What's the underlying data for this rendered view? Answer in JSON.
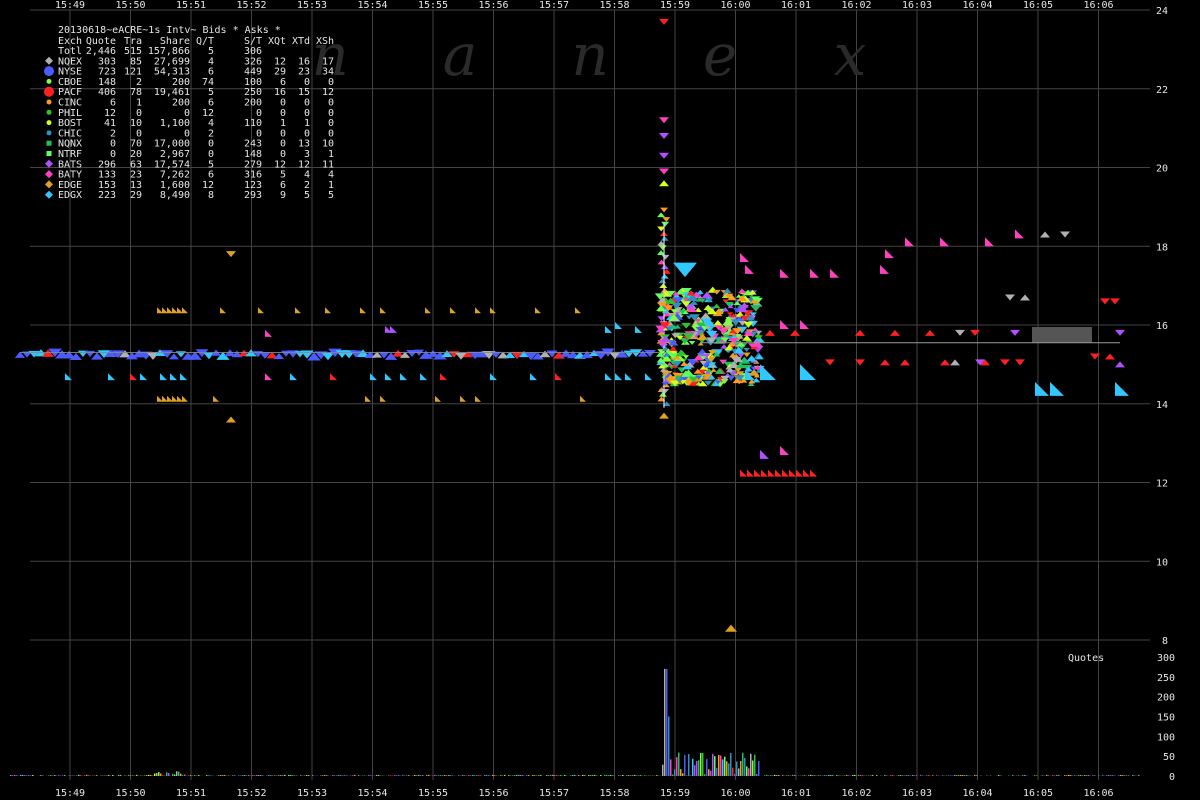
{
  "chart_data": {
    "type": "scatter",
    "title": "20130618~eACRE~1s Intv~ Bids * Asks *",
    "watermark": "nanex",
    "x_axis": {
      "tick_labels": [
        "15:49",
        "15:50",
        "15:51",
        "15:52",
        "15:53",
        "15:54",
        "15:55",
        "15:56",
        "15:57",
        "15:58",
        "15:59",
        "16:00",
        "16:01",
        "16:02",
        "16:03",
        "16:04",
        "16:05",
        "16:06"
      ],
      "xlim": [
        "15:48:40",
        "16:06:50"
      ]
    },
    "y_axis": {
      "ticks": [
        8,
        10,
        12,
        14,
        16,
        18,
        20,
        22,
        24
      ],
      "ylim": [
        8,
        24
      ]
    },
    "volume_axis": {
      "label": "Quotes",
      "ticks": [
        0,
        50,
        100,
        150,
        200,
        250,
        300
      ],
      "ylim": [
        0,
        300
      ]
    },
    "legend": {
      "placement": "top-left",
      "header": [
        "Exch",
        "Quote",
        "Tra",
        "Share",
        "Q/T",
        "S/T",
        "XQt",
        "XTd",
        "XSh"
      ],
      "rows": [
        {
          "exch": "Totl",
          "quote": "2,446",
          "tra": "515",
          "share": "157,866",
          "qt": "5",
          "st": "306",
          "xqt": "",
          "xtd": "",
          "xsh": "",
          "color": "",
          "marker": "none"
        },
        {
          "exch": "NQEX",
          "quote": "303",
          "tra": "85",
          "share": "27,699",
          "qt": "4",
          "st": "326",
          "xqt": "12",
          "xtd": "16",
          "xsh": "17",
          "color": "#b0b0b0",
          "marker": "diamond"
        },
        {
          "exch": "NYSE",
          "quote": "723",
          "tra": "121",
          "share": "54,313",
          "qt": "6",
          "st": "449",
          "xqt": "29",
          "xtd": "23",
          "xsh": "34",
          "color": "#4a5cff",
          "marker": "circle-large"
        },
        {
          "exch": "CBOE",
          "quote": "148",
          "tra": "2",
          "share": "200",
          "qt": "74",
          "st": "100",
          "xqt": "6",
          "xtd": "0",
          "xsh": "0",
          "color": "#80ff40",
          "marker": "circle"
        },
        {
          "exch": "PACF",
          "quote": "406",
          "tra": "78",
          "share": "19,461",
          "qt": "5",
          "st": "250",
          "xqt": "16",
          "xtd": "15",
          "xsh": "12",
          "color": "#ff2020",
          "marker": "circle-large"
        },
        {
          "exch": "CINC",
          "quote": "6",
          "tra": "1",
          "share": "200",
          "qt": "6",
          "st": "200",
          "xqt": "0",
          "xtd": "0",
          "xsh": "0",
          "color": "#ff9a1a",
          "marker": "circle"
        },
        {
          "exch": "PHIL",
          "quote": "12",
          "tra": "0",
          "share": "0",
          "qt": "12",
          "st": "0",
          "xqt": "0",
          "xtd": "0",
          "xsh": "0",
          "color": "#30c030",
          "marker": "circle"
        },
        {
          "exch": "BOST",
          "quote": "41",
          "tra": "10",
          "share": "1,100",
          "qt": "4",
          "st": "110",
          "xqt": "1",
          "xtd": "1",
          "xsh": "0",
          "color": "#d0ff20",
          "marker": "circle"
        },
        {
          "exch": "CHIC",
          "quote": "2",
          "tra": "0",
          "share": "0",
          "qt": "2",
          "st": "0",
          "xqt": "0",
          "xtd": "0",
          "xsh": "0",
          "color": "#3090c0",
          "marker": "circle"
        },
        {
          "exch": "NQNX",
          "quote": "0",
          "tra": "70",
          "share": "17,000",
          "qt": "0",
          "st": "243",
          "xqt": "0",
          "xtd": "13",
          "xsh": "10",
          "color": "#20c060",
          "marker": "square"
        },
        {
          "exch": "NTRF",
          "quote": "0",
          "tra": "20",
          "share": "2,967",
          "qt": "0",
          "st": "148",
          "xqt": "0",
          "xtd": "3",
          "xsh": "1",
          "color": "#60ff60",
          "marker": "square"
        },
        {
          "exch": "BATS",
          "quote": "296",
          "tra": "63",
          "share": "17,574",
          "qt": "5",
          "st": "279",
          "xqt": "12",
          "xtd": "12",
          "xsh": "11",
          "color": "#b050ff",
          "marker": "diamond"
        },
        {
          "exch": "BATY",
          "quote": "133",
          "tra": "23",
          "share": "7,262",
          "qt": "6",
          "st": "316",
          "xqt": "5",
          "xtd": "4",
          "xsh": "4",
          "color": "#ff40c0",
          "marker": "diamond"
        },
        {
          "exch": "EDGE",
          "quote": "153",
          "tra": "13",
          "share": "1,600",
          "qt": "12",
          "st": "123",
          "xqt": "6",
          "xtd": "2",
          "xsh": "1",
          "color": "#e0a020",
          "marker": "diamond"
        },
        {
          "exch": "EDGX",
          "quote": "223",
          "tra": "29",
          "share": "8,490",
          "qt": "8",
          "st": "293",
          "xqt": "9",
          "xtd": "5",
          "xsh": "5",
          "color": "#30c8ff",
          "marker": "diamond"
        }
      ]
    },
    "grid": true,
    "colors": {
      "background": "#000000",
      "grid": "#444444",
      "text": "#e6e6e6"
    }
  }
}
